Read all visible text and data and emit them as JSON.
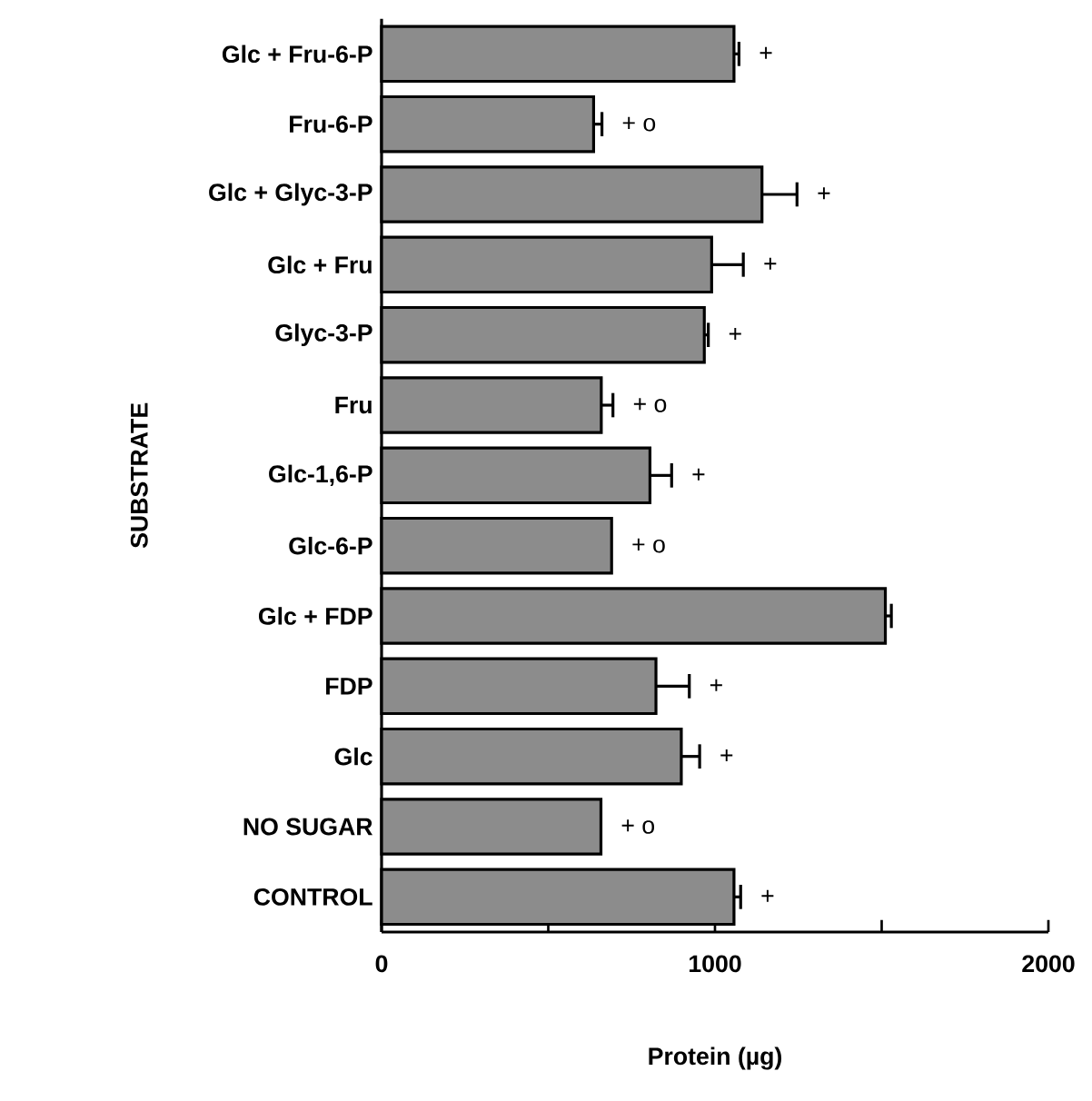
{
  "chart_data": {
    "type": "bar",
    "orientation": "horizontal",
    "xlabel": "Protein (µg)",
    "ylabel": "SUBSTRATE",
    "color": "#8c8c8c",
    "categories": [
      "Glc + Fru-6-P",
      "Fru-6-P",
      "Glc + Glyc-3-P",
      "Glc + Fru",
      "Glyc-3-P",
      "Fru",
      "Glc-1,6-P",
      "Glc-6-P",
      "Glc + FDP",
      "FDP",
      "Glc",
      "NO SUGAR",
      "CONTROL"
    ],
    "values": [
      1057,
      636,
      1141,
      990,
      968,
      659,
      805,
      690,
      1511,
      823,
      899,
      658,
      1057
    ],
    "errors": [
      15,
      25,
      105,
      95,
      12,
      35,
      65,
      null,
      18,
      100,
      55,
      null,
      20
    ],
    "xlim": [
      0,
      2000
    ],
    "xticks": [
      0,
      {
        "value": 500,
        "label": null
      },
      1000,
      {
        "value": 1500,
        "label": null
      },
      2000
    ],
    "value_labels": [
      "+",
      "+ o",
      "+",
      "+",
      "+",
      "+ o",
      "+",
      "+ o",
      null,
      "+",
      "+",
      "+ o",
      "+"
    ]
  }
}
